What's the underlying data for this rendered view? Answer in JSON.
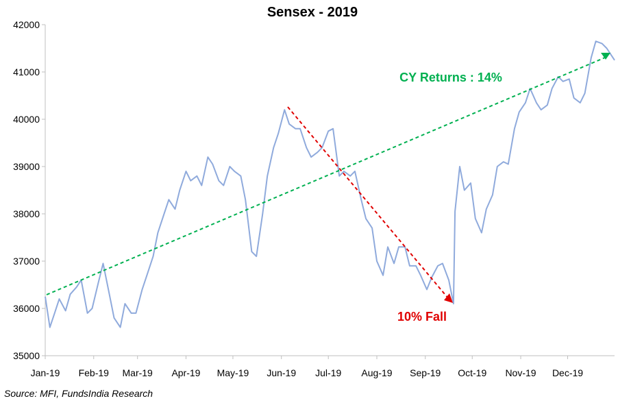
{
  "chart_data": {
    "type": "line",
    "title": "Sensex - 2019",
    "xlabel": "",
    "ylabel": "",
    "ylim": [
      35000,
      42000
    ],
    "y_ticks": [
      "35000",
      "36000",
      "37000",
      "38000",
      "39000",
      "40000",
      "41000",
      "42000"
    ],
    "x_tick_labels": [
      "Jan-19",
      "Feb-19",
      "Mar-19",
      "Apr-19",
      "May-19",
      "Jun-19",
      "Jul-19",
      "Aug-19",
      "Sep-19",
      "Oct-19",
      "Nov-19",
      "Dec-19"
    ],
    "grid": false,
    "series": [
      {
        "color": "#8faadc",
        "x": [
          "2019-01-01",
          "2019-01-04",
          "2019-01-07",
          "2019-01-10",
          "2019-01-14",
          "2019-01-17",
          "2019-01-21",
          "2019-01-24",
          "2019-01-28",
          "2019-01-31",
          "2019-02-04",
          "2019-02-07",
          "2019-02-11",
          "2019-02-14",
          "2019-02-18",
          "2019-02-21",
          "2019-02-25",
          "2019-02-28",
          "2019-03-04",
          "2019-03-07",
          "2019-03-11",
          "2019-03-14",
          "2019-03-18",
          "2019-03-21",
          "2019-03-25",
          "2019-03-28",
          "2019-04-01",
          "2019-04-04",
          "2019-04-08",
          "2019-04-11",
          "2019-04-15",
          "2019-04-18",
          "2019-04-22",
          "2019-04-25",
          "2019-04-29",
          "2019-05-02",
          "2019-05-06",
          "2019-05-09",
          "2019-05-13",
          "2019-05-16",
          "2019-05-20",
          "2019-05-23",
          "2019-05-27",
          "2019-05-30",
          "2019-06-03",
          "2019-06-06",
          "2019-06-10",
          "2019-06-13",
          "2019-06-17",
          "2019-06-20",
          "2019-06-24",
          "2019-06-27",
          "2019-07-01",
          "2019-07-04",
          "2019-07-08",
          "2019-07-11",
          "2019-07-15",
          "2019-07-18",
          "2019-07-22",
          "2019-07-25",
          "2019-07-29",
          "2019-08-01",
          "2019-08-05",
          "2019-08-08",
          "2019-08-12",
          "2019-08-15",
          "2019-08-19",
          "2019-08-22",
          "2019-08-26",
          "2019-08-29",
          "2019-09-02",
          "2019-09-05",
          "2019-09-09",
          "2019-09-12",
          "2019-09-16",
          "2019-09-19",
          "2019-09-20",
          "2019-09-23",
          "2019-09-26",
          "2019-09-30",
          "2019-10-03",
          "2019-10-07",
          "2019-10-10",
          "2019-10-14",
          "2019-10-17",
          "2019-10-21",
          "2019-10-24",
          "2019-10-28",
          "2019-10-31",
          "2019-11-04",
          "2019-11-07",
          "2019-11-11",
          "2019-11-14",
          "2019-11-18",
          "2019-11-21",
          "2019-11-25",
          "2019-11-28",
          "2019-12-02",
          "2019-12-05",
          "2019-12-09",
          "2019-12-12",
          "2019-12-16",
          "2019-12-19",
          "2019-12-23",
          "2019-12-26",
          "2019-12-31"
        ],
        "values": [
          36250,
          35600,
          35900,
          36200,
          35950,
          36300,
          36450,
          36600,
          35900,
          36000,
          36550,
          36950,
          36300,
          35800,
          35600,
          36100,
          35900,
          35900,
          36400,
          36700,
          37100,
          37600,
          38000,
          38300,
          38100,
          38500,
          38900,
          38700,
          38800,
          38600,
          39200,
          39050,
          38700,
          38600,
          39000,
          38900,
          38800,
          38300,
          37200,
          37100,
          38000,
          38800,
          39400,
          39700,
          40200,
          39900,
          39800,
          39800,
          39400,
          39200,
          39300,
          39400,
          39750,
          39800,
          38800,
          38900,
          38800,
          38900,
          38300,
          37900,
          37700,
          37000,
          36700,
          37300,
          36950,
          37300,
          37300,
          36900,
          36900,
          36700,
          36400,
          36650,
          36900,
          36950,
          36600,
          36100,
          38050,
          39000,
          38500,
          38650,
          37900,
          37600,
          38100,
          38400,
          39000,
          39100,
          39050,
          39800,
          40150,
          40350,
          40650,
          40350,
          40200,
          40300,
          40650,
          40900,
          40800,
          40850,
          40450,
          40350,
          40550,
          41300,
          41650,
          41600,
          41500,
          41250
        ]
      }
    ],
    "annotations": [
      {
        "text": "CY Returns : 14%",
        "color": "#00b050"
      },
      {
        "text": "10% Fall",
        "color": "#e00000"
      }
    ]
  },
  "source": "Source: MFI, FundsIndia Research"
}
